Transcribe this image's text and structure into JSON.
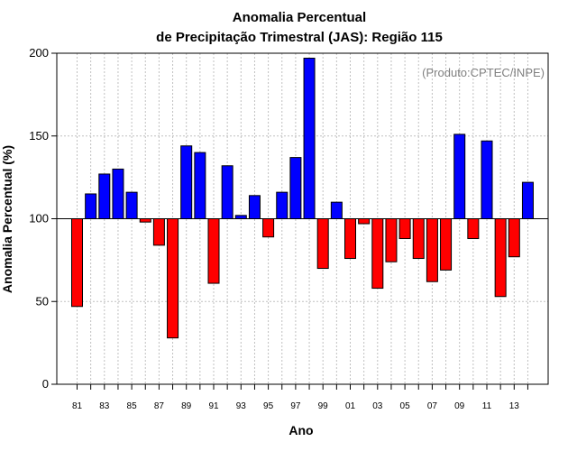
{
  "chart_data": {
    "type": "bar",
    "title_line1": "Anomalia Percentual",
    "title_line2": "de Precipitação Trimestral (JAS): Região 115",
    "xlabel": "Ano",
    "ylabel": "Anomalia Percentual (%)",
    "annotation": "(Produto:CPTEC/INPE)",
    "ylim": [
      0,
      200
    ],
    "yticks": [
      0,
      50,
      100,
      150,
      200
    ],
    "baseline": 100,
    "categories": [
      "81",
      "82",
      "83",
      "84",
      "85",
      "86",
      "87",
      "88",
      "89",
      "90",
      "91",
      "92",
      "93",
      "94",
      "95",
      "96",
      "97",
      "98",
      "99",
      "00",
      "01",
      "02",
      "03",
      "04",
      "05",
      "06",
      "07",
      "08",
      "09",
      "10",
      "11",
      "12",
      "13",
      "14"
    ],
    "tick_labels": [
      "81",
      "83",
      "85",
      "87",
      "89",
      "91",
      "93",
      "95",
      "97",
      "99",
      "01",
      "03",
      "05",
      "07",
      "09",
      "11",
      "13"
    ],
    "values": [
      47,
      115,
      127,
      130,
      116,
      98,
      84,
      28,
      144,
      140,
      61,
      132,
      102,
      114,
      89,
      116,
      137,
      197,
      70,
      110,
      76,
      97,
      58,
      74,
      88,
      76,
      62,
      69,
      151,
      88,
      147,
      53,
      77,
      122
    ],
    "colors": {
      "above": "#0000ff",
      "below": "#ff0000",
      "grid": "#c0c0c0"
    }
  }
}
